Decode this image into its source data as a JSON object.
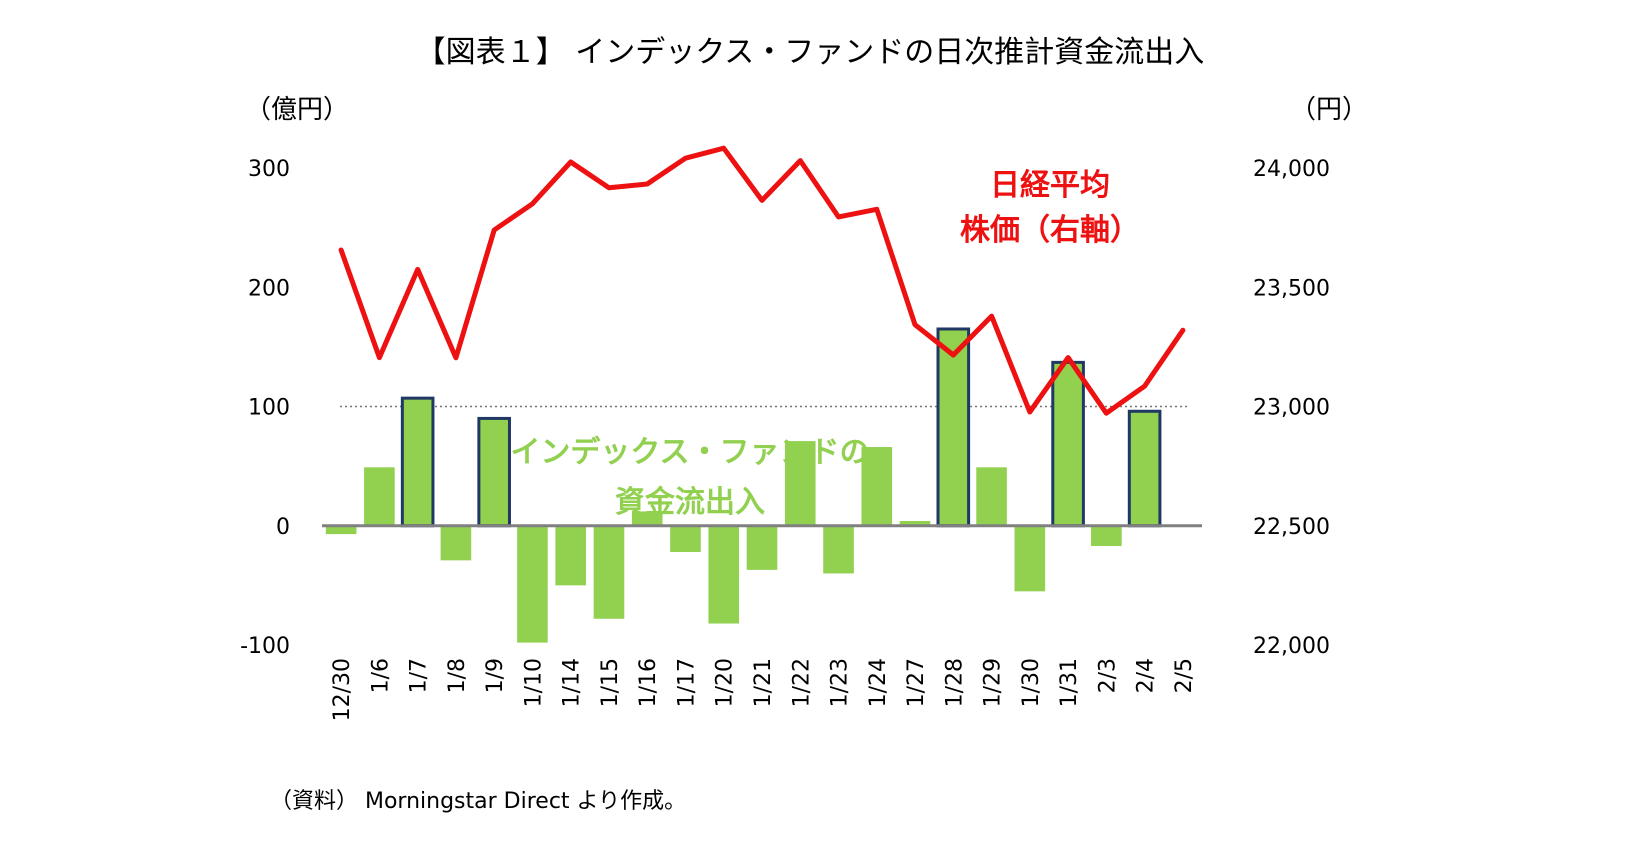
{
  "chart_data": {
    "type": "bar+line",
    "title": "【図表１】 インデックス・ファンドの日次推計資金流出入",
    "source_note": "（資料） Morningstar Direct より作成。",
    "left_axis": {
      "unit_label": "（億円）",
      "min": -100,
      "max": 300,
      "ticks": [
        300,
        200,
        100,
        0,
        -100
      ],
      "tick_labels": [
        "300",
        "200",
        "100",
        "0",
        "-100"
      ]
    },
    "right_axis": {
      "unit_label": "（円）",
      "min": 22000,
      "max": 24000,
      "ticks": [
        24000,
        23500,
        23000,
        22500,
        22000
      ],
      "tick_labels": [
        "24,000",
        "23,500",
        "23,000",
        "22,500",
        "22,000"
      ]
    },
    "reference_line": {
      "axis": "left",
      "value": 100,
      "style": "dotted"
    },
    "categories": [
      "12/30",
      "1/6",
      "1/7",
      "1/8",
      "1/9",
      "1/10",
      "1/14",
      "1/15",
      "1/16",
      "1/17",
      "1/20",
      "1/21",
      "1/22",
      "1/23",
      "1/24",
      "1/27",
      "1/28",
      "1/29",
      "1/30",
      "1/31",
      "2/3",
      "2/4",
      "2/5"
    ],
    "series": [
      {
        "name": "インデックス・ファンドの資金流出入",
        "label_lines": [
          "インデックス・ファンドの",
          "資金流出入"
        ],
        "kind": "bar",
        "axis": "left",
        "color": "#92d050",
        "highlight_border": "#1f3864",
        "values": [
          -7,
          49,
          107,
          -29,
          90,
          -98,
          -50,
          -78,
          12,
          -22,
          -82,
          -37,
          71,
          -40,
          66,
          4,
          165,
          49,
          -55,
          137,
          -17,
          96,
          null
        ],
        "highlighted": [
          false,
          false,
          true,
          false,
          true,
          false,
          false,
          false,
          false,
          false,
          false,
          false,
          false,
          false,
          false,
          false,
          true,
          false,
          false,
          true,
          false,
          true,
          false
        ]
      },
      {
        "name": "日経平均株価（右軸）",
        "label_lines": [
          "日経平均",
          "株価（右軸）"
        ],
        "kind": "line",
        "axis": "right",
        "color": "#ee1111",
        "values": [
          23656,
          23205,
          23575,
          23204,
          23740,
          23850,
          24025,
          23917,
          23933,
          24041,
          24083,
          23864,
          24031,
          23795,
          23827,
          23343,
          23216,
          23379,
          22977,
          23205,
          22972,
          23085,
          23320
        ]
      }
    ],
    "grid": false,
    "legend": "inline-labels"
  }
}
